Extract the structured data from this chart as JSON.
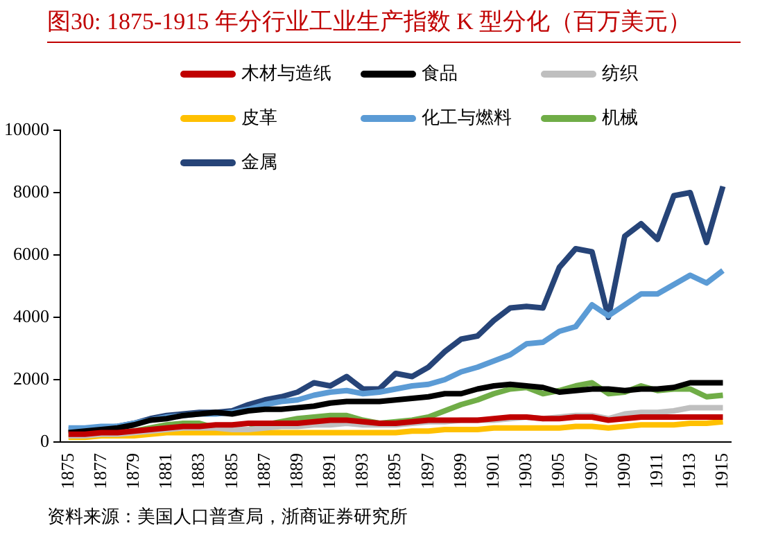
{
  "chart_data": {
    "type": "line",
    "title": "图30:  1875-1915 年分行业工业生产指数 K 型分化（百万美元）",
    "categories": [
      "1875",
      null,
      "1877",
      null,
      "1879",
      null,
      "1881",
      null,
      "1883",
      null,
      "1885",
      null,
      "1887",
      null,
      "1889",
      null,
      "1891",
      null,
      "1893",
      null,
      "1895",
      null,
      "1897",
      null,
      "1899",
      null,
      "1901",
      null,
      "1903",
      null,
      "1905",
      null,
      "1907",
      null,
      "1909",
      null,
      "1911",
      null,
      "1913",
      null,
      "1915"
    ],
    "series": [
      {
        "name": "木材与造纸",
        "color": "#c00000",
        "values": [
          250,
          250,
          300,
          300,
          350,
          400,
          450,
          500,
          500,
          550,
          550,
          600,
          600,
          600,
          600,
          650,
          700,
          700,
          650,
          600,
          600,
          650,
          700,
          700,
          700,
          700,
          750,
          800,
          800,
          750,
          750,
          800,
          800,
          700,
          750,
          800,
          800,
          800,
          800,
          800,
          800
        ]
      },
      {
        "name": "食品",
        "color": "#000000",
        "values": [
          300,
          350,
          400,
          450,
          550,
          700,
          750,
          850,
          900,
          950,
          900,
          1000,
          1050,
          1050,
          1100,
          1150,
          1250,
          1300,
          1300,
          1300,
          1350,
          1400,
          1450,
          1550,
          1550,
          1700,
          1800,
          1850,
          1800,
          1750,
          1600,
          1650,
          1700,
          1700,
          1650,
          1700,
          1700,
          1750,
          1900,
          1900,
          1900
        ]
      },
      {
        "name": "纺织",
        "color": "#bfbfbf",
        "values": [
          200,
          200,
          250,
          250,
          300,
          350,
          400,
          450,
          450,
          450,
          400,
          400,
          450,
          500,
          500,
          550,
          550,
          600,
          550,
          550,
          550,
          600,
          650,
          650,
          700,
          700,
          700,
          750,
          800,
          750,
          800,
          850,
          850,
          750,
          900,
          950,
          950,
          1000,
          1100,
          1100,
          1100
        ]
      },
      {
        "name": "皮革",
        "color": "#ffc000",
        "values": [
          150,
          150,
          200,
          200,
          200,
          250,
          300,
          300,
          300,
          300,
          300,
          300,
          300,
          300,
          300,
          300,
          300,
          300,
          300,
          300,
          300,
          350,
          350,
          400,
          400,
          400,
          450,
          450,
          450,
          450,
          450,
          500,
          500,
          450,
          500,
          550,
          550,
          550,
          600,
          600,
          650
        ]
      },
      {
        "name": "化工与燃料",
        "color": "#5b9bd5",
        "values": [
          450,
          450,
          500,
          500,
          600,
          700,
          800,
          850,
          900,
          900,
          950,
          1050,
          1200,
          1300,
          1350,
          1500,
          1600,
          1650,
          1550,
          1600,
          1700,
          1800,
          1850,
          2000,
          2250,
          2400,
          2600,
          2800,
          3150,
          3200,
          3550,
          3700,
          4400,
          4050,
          4400,
          4750,
          4750,
          5050,
          5350,
          5100,
          5500
        ]
      },
      {
        "name": "机械",
        "color": "#70ad47",
        "values": [
          250,
          250,
          300,
          300,
          350,
          450,
          550,
          600,
          600,
          450,
          400,
          400,
          550,
          650,
          750,
          800,
          850,
          850,
          700,
          600,
          650,
          700,
          800,
          1000,
          1200,
          1350,
          1550,
          1700,
          1750,
          1550,
          1650,
          1800,
          1900,
          1550,
          1600,
          1800,
          1650,
          1700,
          1700,
          1450,
          1500
        ]
      },
      {
        "name": "金属",
        "color": "#264478",
        "values": [
          400,
          400,
          450,
          500,
          600,
          750,
          850,
          900,
          950,
          950,
          1000,
          1200,
          1350,
          1450,
          1600,
          1900,
          1800,
          2100,
          1700,
          1700,
          2200,
          2100,
          2400,
          2900,
          3300,
          3400,
          3900,
          4300,
          4350,
          4300,
          5600,
          6200,
          6100,
          4000,
          6600,
          7000,
          6500,
          7900,
          8000,
          6400,
          8200
        ]
      }
    ],
    "ylim": [
      0,
      10000
    ],
    "yticks": [
      0,
      2000,
      4000,
      6000,
      8000,
      10000
    ],
    "grid": false,
    "legend": "top",
    "marker": "none",
    "line_style": "solid",
    "annotations": [
      "资料来源：美国人口普查局，浙商证券研究所"
    ]
  }
}
